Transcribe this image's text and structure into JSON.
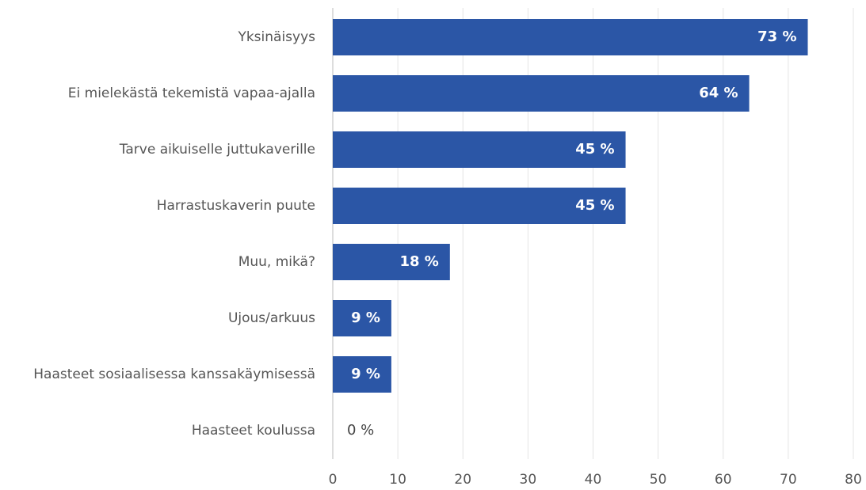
{
  "chart_data": {
    "type": "hbar",
    "categories": [
      "Yksinäisyys",
      "Ei mielekästä tekemistä vapaa-ajalla",
      "Tarve aikuiselle juttukaverille",
      "Harrastuskaverin puute",
      "Muu, mikä?",
      "Ujous/arkuus",
      "Haasteet sosiaalisessa kanssakäymisessä",
      "Haasteet koulussa"
    ],
    "values": [
      73,
      64,
      45,
      45,
      18,
      9,
      9,
      0
    ],
    "value_labels": [
      "73 %",
      "64 %",
      "45 %",
      "45 %",
      "18 %",
      "9 %",
      "9 %",
      "0 %"
    ],
    "color": "#2b56a6",
    "xlim": [
      0,
      80
    ],
    "xticks": [
      0,
      10,
      20,
      30,
      40,
      50,
      60,
      70,
      80
    ],
    "grid": true
  }
}
